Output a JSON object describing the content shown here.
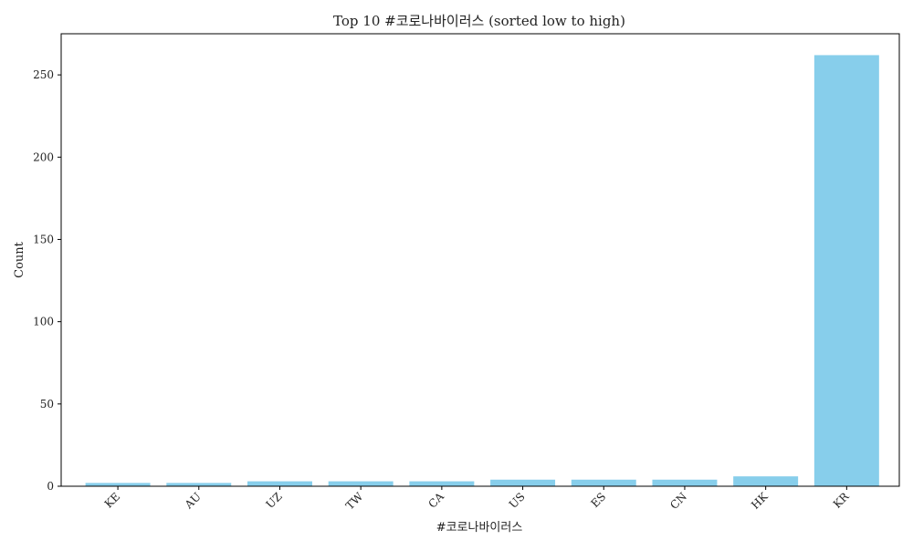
{
  "chart_data": {
    "type": "bar",
    "title": "Top 10 #코로나바이러스 (sorted low to high)",
    "xlabel": "#코로나바이러스",
    "ylabel": "Count",
    "categories": [
      "KE",
      "AU",
      "UZ",
      "TW",
      "CA",
      "US",
      "ES",
      "CN",
      "HK",
      "KR"
    ],
    "values": [
      2,
      2,
      3,
      3,
      3,
      4,
      4,
      4,
      6,
      262
    ],
    "ylim": [
      0,
      275
    ],
    "yticks": [
      0,
      50,
      100,
      150,
      200,
      250
    ],
    "bar_color": "#87ceeb",
    "grid": false,
    "legend": "none"
  }
}
